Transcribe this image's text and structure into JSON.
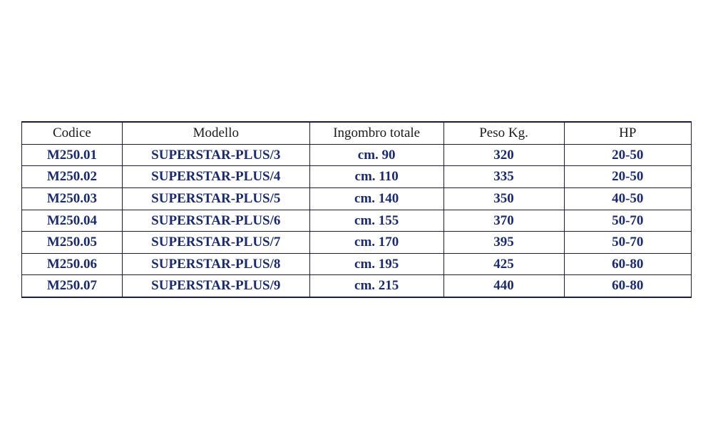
{
  "table": {
    "type": "table",
    "columns": [
      {
        "label": "Codice",
        "width": "15%"
      },
      {
        "label": "Modello",
        "width": "28%"
      },
      {
        "label": "Ingombro totale",
        "width": "20%"
      },
      {
        "label": "Peso Kg.",
        "width": "18%"
      },
      {
        "label": "HP",
        "width": "19%"
      }
    ],
    "rows": [
      {
        "codice": "M250.01",
        "modello": "SUPERSTAR-PLUS/3",
        "ingombro": "cm. 90",
        "peso": "320",
        "hp": "20-50"
      },
      {
        "codice": "M250.02",
        "modello": "SUPERSTAR-PLUS/4",
        "ingombro": "cm. 110",
        "peso": "335",
        "hp": "20-50"
      },
      {
        "codice": "M250.03",
        "modello": "SUPERSTAR-PLUS/5",
        "ingombro": "cm. 140",
        "peso": "350",
        "hp": "40-50"
      },
      {
        "codice": "M250.04",
        "modello": "SUPERSTAR-PLUS/6",
        "ingombro": "cm. 155",
        "peso": "370",
        "hp": "50-70"
      },
      {
        "codice": "M250.05",
        "modello": "SUPERSTAR-PLUS/7",
        "ingombro": "cm. 170",
        "peso": "395",
        "hp": "50-70"
      },
      {
        "codice": "M250.06",
        "modello": "SUPERSTAR-PLUS/8",
        "ingombro": "cm. 195",
        "peso": "425",
        "hp": "60-80"
      },
      {
        "codice": "M250.07",
        "modello": "SUPERSTAR-PLUS/9",
        "ingombro": "cm. 215",
        "peso": "440",
        "hp": "60-80"
      }
    ],
    "header_text_color": "#1a1a1a",
    "cell_text_color": "#1a2a6a",
    "border_color": "#1a1a3a",
    "background_color": "#ffffff",
    "font_family": "Times New Roman",
    "header_fontsize_pt": 14,
    "cell_fontsize_pt": 14,
    "cell_font_weight": "bold",
    "header_font_weight": "normal",
    "text_align": "center"
  }
}
